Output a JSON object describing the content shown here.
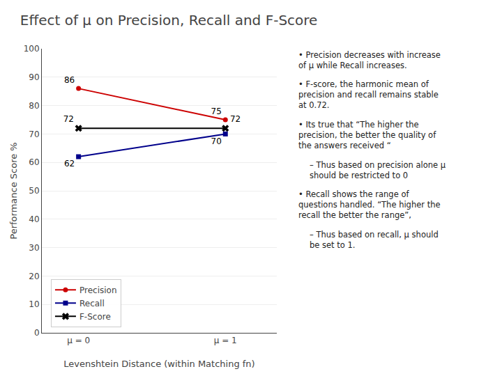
{
  "chart_data": {
    "type": "line",
    "title": "Effect of μ on Precision, Recall and F-Score",
    "x_label": "Levenshtein Distance (within Matching fn)",
    "y_label": "Performance Score %",
    "x": [
      0,
      1
    ],
    "xlim": [
      -0.25,
      1.35
    ],
    "xticks": [
      {
        "value": 0,
        "label": "μ = 0"
      },
      {
        "value": 1,
        "label": "μ = 1"
      }
    ],
    "ylim": [
      0,
      100
    ],
    "yticks": [
      0,
      10,
      20,
      30,
      40,
      50,
      60,
      70,
      80,
      90,
      100
    ],
    "grid": true,
    "legend": "lower left",
    "data_labels": true,
    "series": [
      {
        "name": "Precision",
        "color": "#cc0000",
        "marker": "circle",
        "values": [
          86,
          75
        ]
      },
      {
        "name": "Recall",
        "color": "#00008b",
        "marker": "square",
        "values": [
          62,
          70
        ]
      },
      {
        "name": "F-Score",
        "color": "#000000",
        "marker": "x",
        "values": [
          72,
          72
        ]
      }
    ],
    "annotations": [
      "• Precision decreases with increase of μ while Recall increases.",
      "• F-score, the harmonic mean of precision and recall remains stable at 0.72.",
      "• Its true that “The higher the precision, the better the quality of the answers received “",
      "– Thus based on precision alone μ should be restricted to 0",
      "• Recall shows the range of questions handled. “The higher the recall the better the range”,",
      "– Thus based on recall, μ should be set to 1."
    ]
  }
}
